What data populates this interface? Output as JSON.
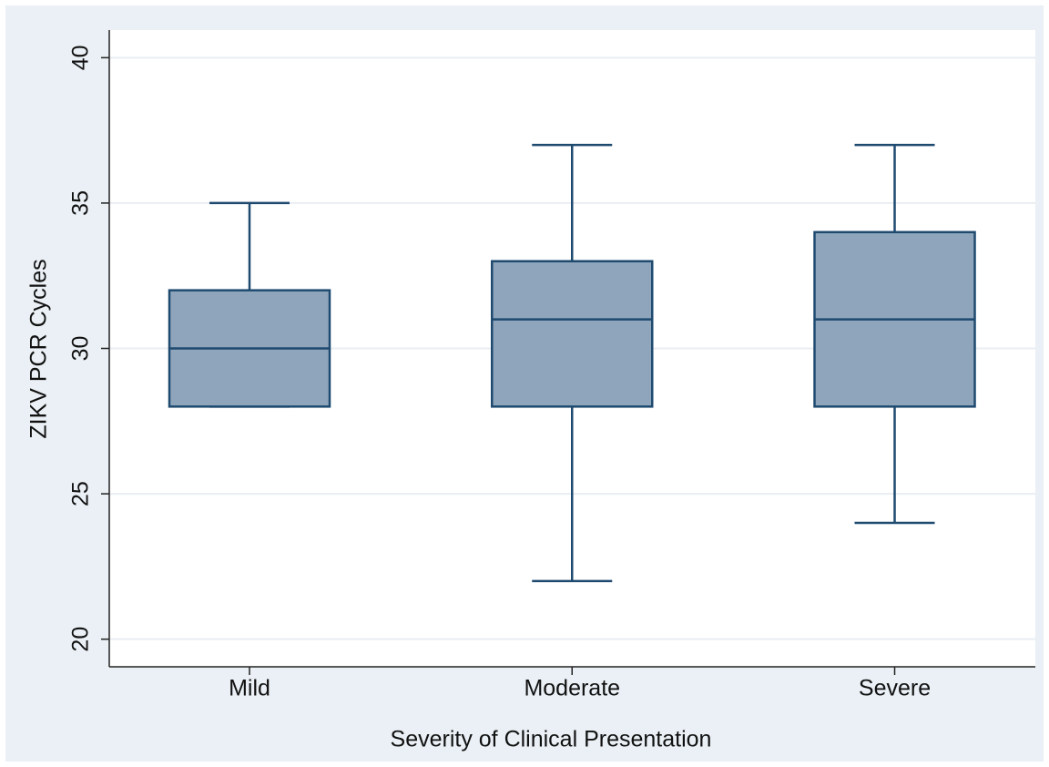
{
  "chart_data": {
    "type": "box",
    "x_label": "Severity of Clinical Presentation",
    "y_label": "ZIKV PCR Cycles",
    "categories": [
      "Mild",
      "Moderate",
      "Severe"
    ],
    "min": [
      28,
      22,
      24
    ],
    "q1": [
      28,
      28,
      28
    ],
    "median": [
      30,
      31,
      31
    ],
    "q3": [
      32,
      33,
      34
    ],
    "max": [
      35,
      37,
      37
    ],
    "color": "#8fa5bb",
    "edge_color": "#1f4a70",
    "ylim": [
      19.05,
      40.95
    ],
    "yticks": [
      20,
      25,
      30,
      35,
      40
    ],
    "grid": true
  }
}
